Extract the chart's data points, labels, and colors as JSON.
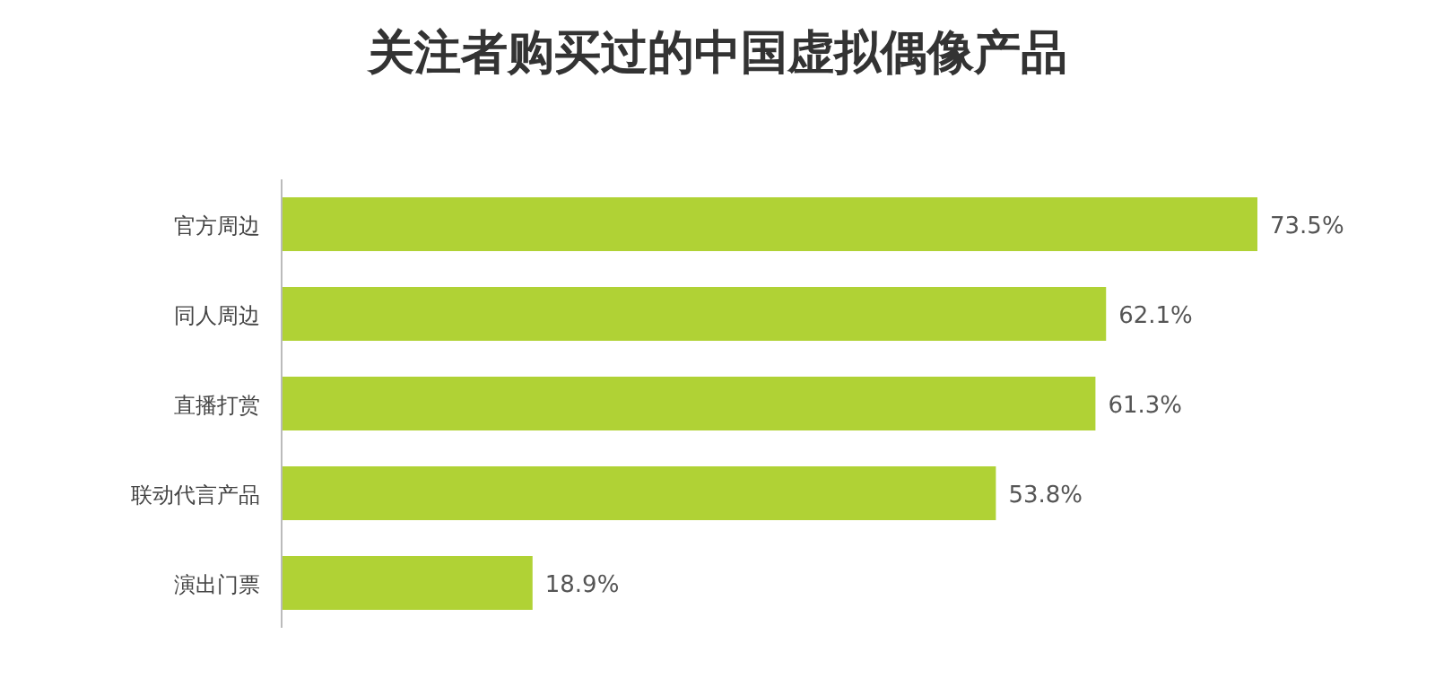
{
  "chart_data": {
    "type": "bar",
    "orientation": "horizontal",
    "title": "关注者购买过的中国虚拟偶像产品",
    "categories": [
      "官方周边",
      "同人周边",
      "直播打赏",
      "联动代言产品",
      "演出门票"
    ],
    "values": [
      73.5,
      62.1,
      61.3,
      53.8,
      18.9
    ],
    "value_labels": [
      "73.5%",
      "62.1%",
      "61.3%",
      "53.8%",
      "18.9%"
    ],
    "color": "#b0d235"
  }
}
